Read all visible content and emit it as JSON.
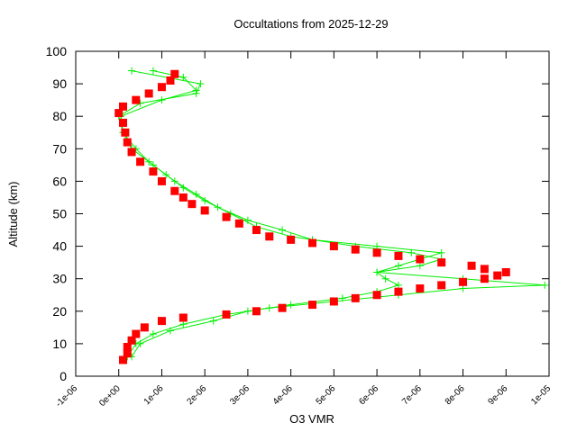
{
  "chart_data": {
    "type": "line",
    "title": "Occultations from 2025-12-29",
    "xlabel": "O3 VMR",
    "ylabel": "Altitude (km)",
    "xlim": [
      -1e-06,
      1e-05
    ],
    "ylim": [
      0,
      100
    ],
    "xticks": [
      {
        "value": -1e-06,
        "label": "-1e-06"
      },
      {
        "value": 0,
        "label": "0e+00"
      },
      {
        "value": 1e-06,
        "label": "1e-06"
      },
      {
        "value": 2e-06,
        "label": "2e-06"
      },
      {
        "value": 3e-06,
        "label": "3e-06"
      },
      {
        "value": 4e-06,
        "label": "4e-06"
      },
      {
        "value": 5e-06,
        "label": "5e-06"
      },
      {
        "value": 6e-06,
        "label": "6e-06"
      },
      {
        "value": 7e-06,
        "label": "7e-06"
      },
      {
        "value": 8e-06,
        "label": "8e-06"
      },
      {
        "value": 9e-06,
        "label": "9e-06"
      },
      {
        "value": 1e-05,
        "label": "1e-05"
      }
    ],
    "yticks": [
      0,
      10,
      20,
      30,
      40,
      50,
      60,
      70,
      80,
      90,
      100
    ],
    "series": [
      {
        "color": "#00ee00",
        "style": "linespoints",
        "marker": "plus",
        "x": [
          2e-07,
          4e-07,
          8e-07,
          1.5e-06,
          2.5e-06,
          3.5e-06,
          5e-06,
          6.5e-06,
          8e-06,
          9.9e-06,
          8e-06,
          6e-06,
          6.5e-06,
          7e-06,
          7.5e-06,
          6e-06,
          4.5e-06,
          3.8e-06,
          3e-06,
          2.3e-06,
          1.8e-06,
          1.3e-06,
          8e-07,
          3e-07,
          1e-07,
          0,
          5e-07,
          1.8e-06,
          1.9e-06,
          3e-07
        ],
        "values": [
          6,
          10,
          13,
          16,
          19,
          21,
          23,
          25,
          27,
          28,
          30,
          32,
          34,
          36,
          38,
          40,
          42,
          45,
          48,
          52,
          56,
          60,
          65,
          70,
          75,
          80,
          84,
          87,
          90,
          94
        ]
      },
      {
        "color": "#00ee00",
        "style": "linespoints",
        "marker": "plus",
        "x": [
          3e-07,
          5e-07,
          1.2e-06,
          2.2e-06,
          3e-06,
          4e-06,
          5.2e-06,
          6e-06,
          6.5e-06,
          6.2e-06,
          6e-06,
          7e-06,
          7.5e-06,
          6.8e-06,
          5.5e-06,
          4e-06,
          3.2e-06,
          2.6e-06,
          2e-06,
          1.5e-06,
          1.1e-06,
          7e-07,
          4e-07,
          1e-07,
          5e-08,
          1e-06,
          1.8e-06,
          1.5e-06,
          8e-07
        ],
        "values": [
          6,
          10,
          14,
          17,
          20,
          22,
          24,
          26,
          28,
          30,
          32,
          34,
          36,
          38,
          40,
          43,
          46,
          50,
          54,
          58,
          62,
          66,
          70,
          75,
          80,
          85,
          88,
          92,
          94
        ]
      },
      {
        "color": "#ff0000",
        "style": "points",
        "marker": "square",
        "x": [
          1e-07,
          2e-07,
          2e-07,
          3e-07,
          4e-07,
          6e-07,
          1e-06,
          1.5e-06,
          2.5e-06,
          3.2e-06,
          3.8e-06,
          4.5e-06,
          5e-06,
          5.5e-06,
          6e-06,
          6.5e-06,
          7e-06,
          7.5e-06,
          8e-06,
          8.5e-06,
          8.8e-06,
          9e-06,
          8.5e-06,
          8.2e-06,
          7.5e-06,
          7e-06,
          6.5e-06,
          6e-06,
          5.5e-06,
          5e-06,
          4.5e-06,
          4e-06,
          3.5e-06,
          3.2e-06,
          2.8e-06,
          2.5e-06,
          2e-06,
          1.7e-06,
          1.5e-06,
          1.3e-06,
          1e-06,
          8e-07,
          5e-07,
          3e-07,
          2e-07,
          1.5e-07,
          1e-07,
          0,
          1e-07,
          4e-07,
          7e-07,
          1e-06,
          1.2e-06,
          1.3e-06
        ],
        "values": [
          5,
          7,
          9,
          11,
          13,
          15,
          17,
          18,
          19,
          20,
          21,
          22,
          23,
          24,
          25,
          26,
          27,
          28,
          29,
          30,
          31,
          32,
          33,
          34,
          35,
          36,
          37,
          38,
          39,
          40,
          41,
          42,
          43,
          45,
          47,
          49,
          51,
          53,
          55,
          57,
          60,
          63,
          66,
          69,
          72,
          75,
          78,
          81,
          83,
          85,
          87,
          89,
          91,
          93
        ]
      }
    ]
  }
}
